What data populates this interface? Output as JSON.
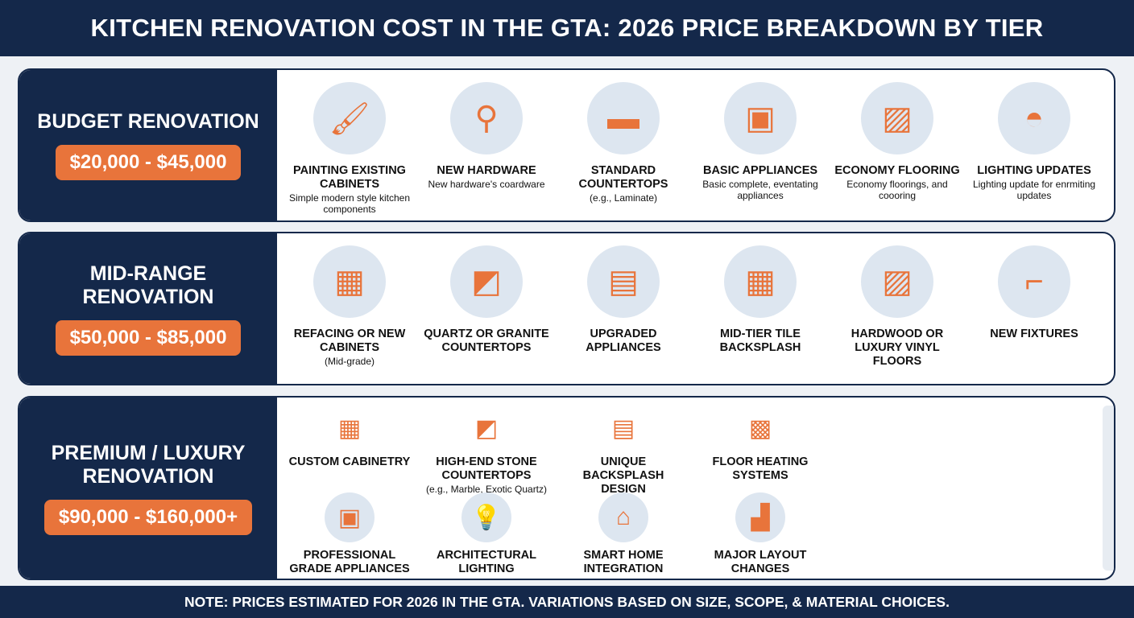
{
  "title": "KITCHEN RENOVATION COST IN THE GTA: 2026 PRICE BREAKDOWN BY TIER",
  "footer": "NOTE: PRICES ESTIMATED FOR 2026 IN THE GTA. VARIATIONS BASED ON SIZE, SCOPE, & MATERIAL CHOICES.",
  "colors": {
    "navy": "#14284a",
    "orange": "#e8743b",
    "icon_bg": "#dde6f0"
  },
  "tiers": [
    {
      "name": "BUDGET RENOVATION",
      "price": "$20,000 - $45,000",
      "items": [
        {
          "label": "PAINTING EXISTING CABINETS",
          "sub": "Simple modern style kitchen components",
          "icon": "paintbrush-cabinet-icon"
        },
        {
          "label": "NEW HARDWARE",
          "sub": "New hardware's coardware",
          "icon": "cabinet-handles-icon"
        },
        {
          "label": "STANDARD COUNTERTOPS",
          "sub": "(e.g., Laminate)",
          "icon": "countertop-icon"
        },
        {
          "label": "BASIC APPLIANCES",
          "sub": "Basic complete, eventating appliances",
          "icon": "oven-icon"
        },
        {
          "label": "ECONOMY FLOORING",
          "sub": "Economy floorings, and coooring",
          "icon": "wood-floor-icon"
        },
        {
          "label": "LIGHTING UPDATES",
          "sub": "Lighting update for enrmiting updates",
          "icon": "pendant-lamp-icon"
        }
      ]
    },
    {
      "name": "MID-RANGE RENOVATION",
      "price": "$50,000 - $85,000",
      "items": [
        {
          "label": "REFACING OR NEW CABINETS",
          "sub": "(Mid-grade)",
          "icon": "cabinets-icon"
        },
        {
          "label": "QUARTZ OR GRANITE COUNTERTOPS",
          "sub": "",
          "icon": "quartz-countertop-icon"
        },
        {
          "label": "UPGRADED APPLIANCES",
          "sub": "",
          "icon": "appliances-icon"
        },
        {
          "label": "MID-TIER TILE BACKSPLASH",
          "sub": "",
          "icon": "tile-icon"
        },
        {
          "label": "HARDWOOD OR LUXURY VINYL FLOORS",
          "sub": "",
          "icon": "hardwood-icon"
        },
        {
          "label": "NEW FIXTURES",
          "sub": "",
          "icon": "faucet-icon"
        }
      ]
    },
    {
      "name": "PREMIUM / LUXURY RENOVATION",
      "price": "$90,000 - $160,000+",
      "items": [
        {
          "label": "CUSTOM CABINETRY",
          "sub": "",
          "icon": "custom-cabinetry-icon"
        },
        {
          "label": "HIGH-END STONE COUNTERTOPS",
          "sub": "(e.g., Marble, Exotic Quartz)",
          "icon": "marble-countertop-icon"
        },
        {
          "label": "UNIQUE BACKSPLASH DESIGN",
          "sub": "",
          "icon": "backsplash-icon"
        },
        {
          "label": "FLOOR HEATING SYSTEMS",
          "sub": "",
          "icon": "floor-heating-icon"
        },
        {
          "label": "PROFESSIONAL GRADE APPLIANCES",
          "sub": "",
          "icon": "pro-oven-icon"
        },
        {
          "label": "ARCHITECTURAL LIGHTING",
          "sub": "",
          "icon": "lightbulb-icon"
        },
        {
          "label": "SMART HOME INTEGRATION",
          "sub": "",
          "icon": "smart-home-icon"
        },
        {
          "label": "MAJOR LAYOUT CHANGES",
          "sub": "",
          "icon": "layout-icon"
        }
      ]
    }
  ]
}
